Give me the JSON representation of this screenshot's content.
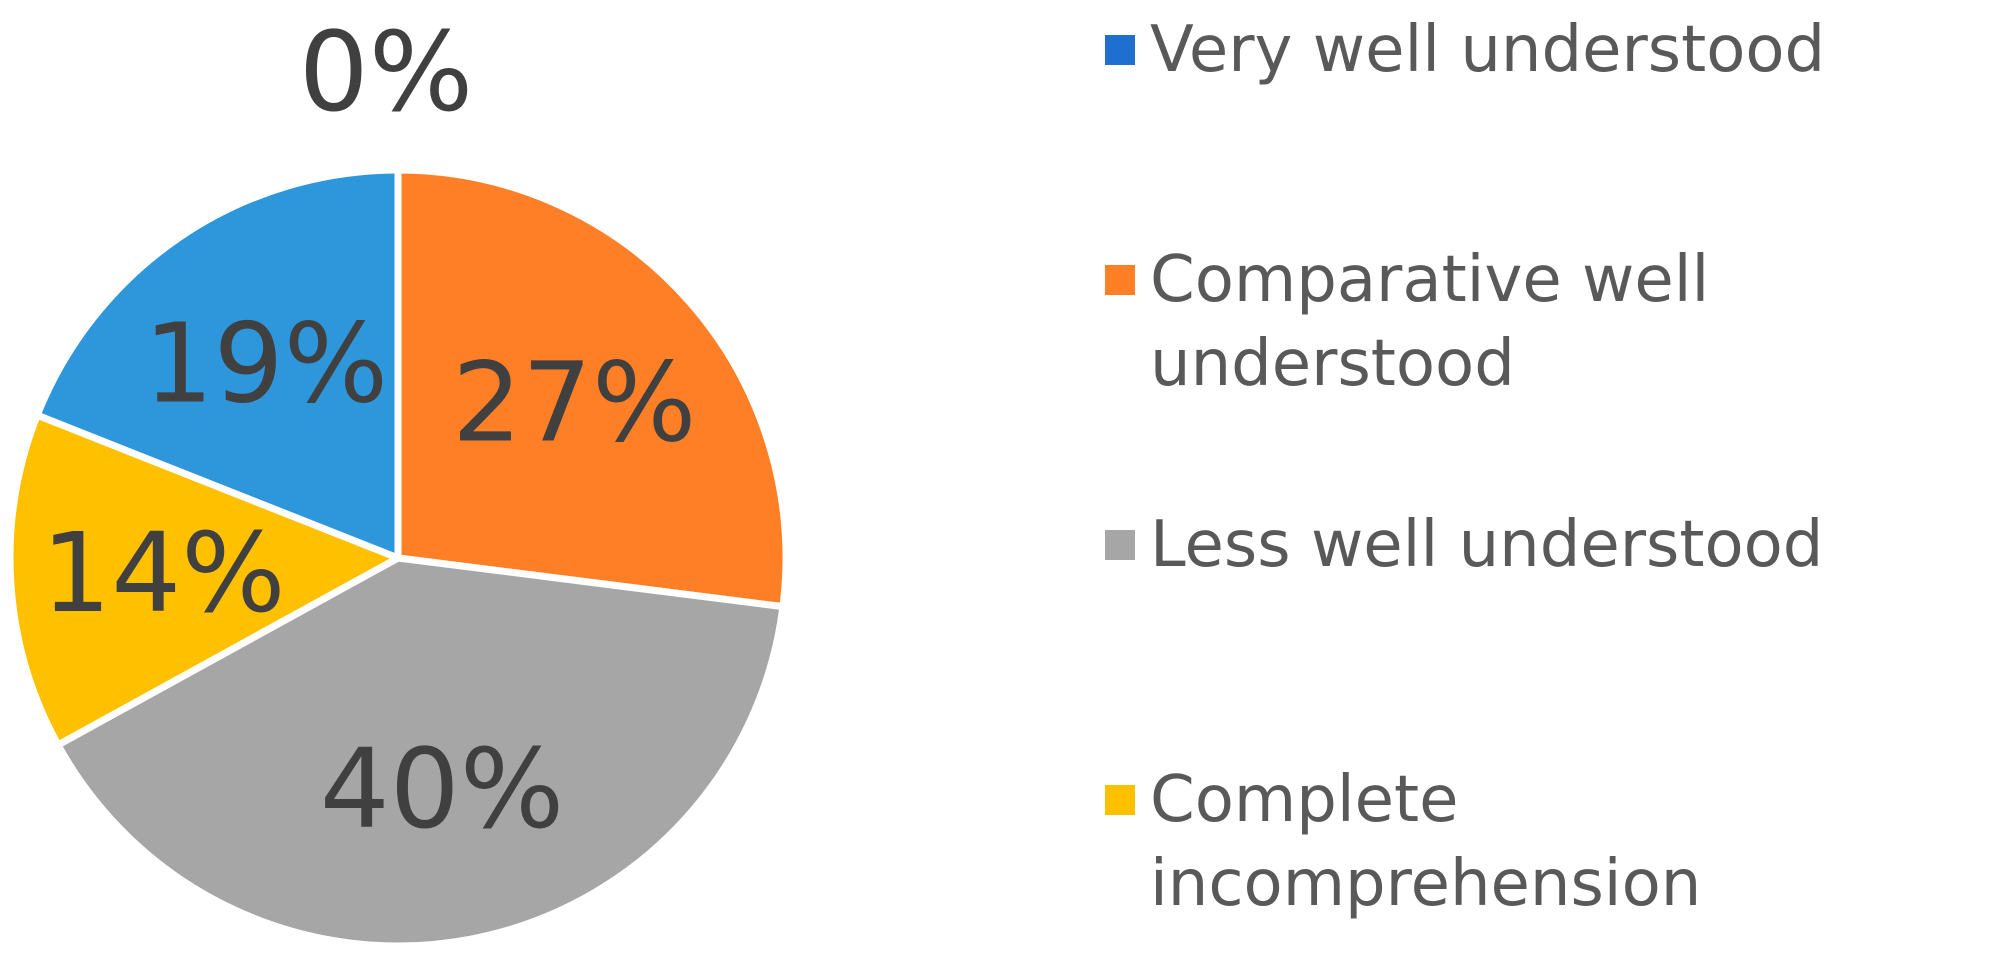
{
  "chart_data": {
    "type": "pie",
    "title": "",
    "legend_placement": "right",
    "slices": [
      {
        "name": "Very well understood",
        "value": 0,
        "label": "0%",
        "color": "#1F6FD0"
      },
      {
        "name": "Comparative well understood",
        "value": 27,
        "label": "27%",
        "color": "#FF7F27"
      },
      {
        "name": "Less well understood",
        "value": 40,
        "label": "40%",
        "color": "#A6A6A6"
      },
      {
        "name": "Complete incomprehension",
        "value": 14,
        "label": "14%",
        "color": "#FFC000"
      },
      {
        "name": "",
        "value": 19,
        "label": "19%",
        "color": "#2E96DB"
      }
    ],
    "legend": [
      {
        "lines": [
          "Very well understood"
        ],
        "color": "#1F6FD0"
      },
      {
        "lines": [
          "Comparative well",
          "understood"
        ],
        "color": "#FF7F27"
      },
      {
        "lines": [
          "Less well understood"
        ],
        "color": "#A6A6A6"
      },
      {
        "lines": [
          "Complete",
          "incomprehension"
        ],
        "color": "#FFC000"
      }
    ]
  }
}
